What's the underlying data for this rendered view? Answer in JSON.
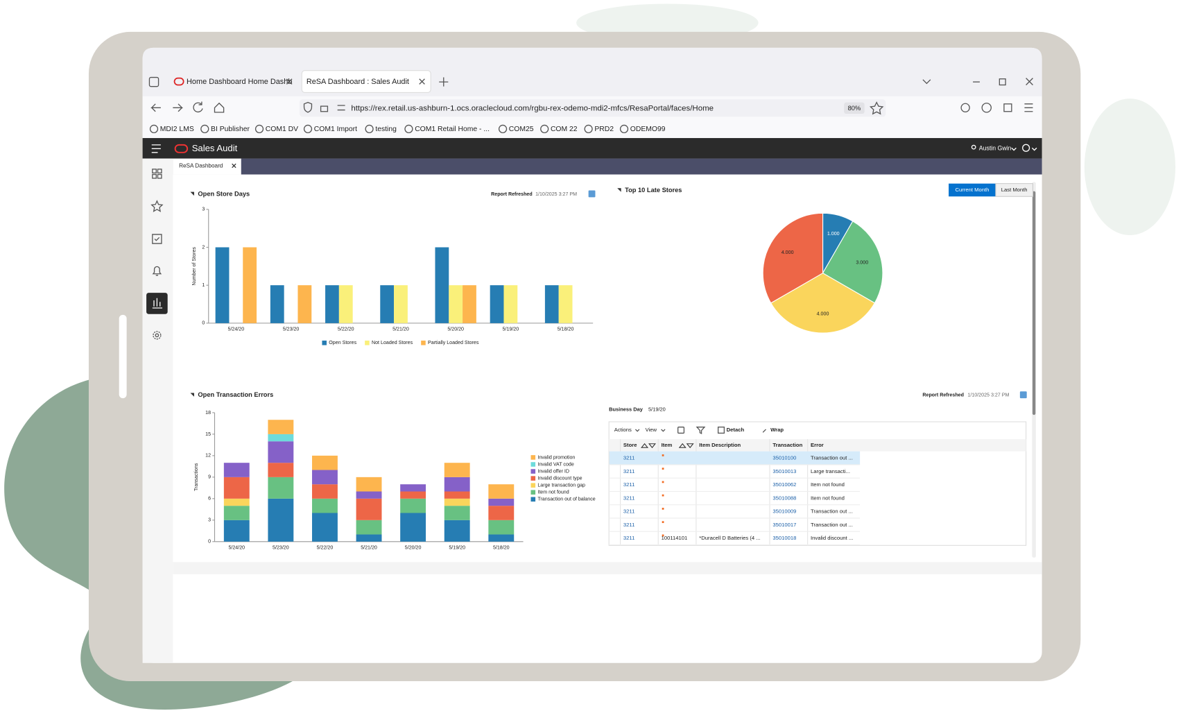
{
  "browser": {
    "tabs": [
      "Home Dashboard Home Dashb",
      "ReSA Dashboard : Sales Audit"
    ],
    "url": "https://rex.retail.us-ashburn-1.ocs.oraclecloud.com/rgbu-rex-odemo-mdi2-mfcs/ResaPortal/faces/Home",
    "zoom": "80%",
    "bookmarks": [
      "MDI2 LMS",
      "BI Publisher",
      "COM1 DV",
      "COM1 Import",
      "testing",
      "COM1 Retail Home - ...",
      "COM25",
      "COM 22",
      "PRD2",
      "ODEMO99"
    ]
  },
  "app": {
    "title": "Sales Audit",
    "user": "Austin Gwin",
    "tab": "ReSA Dashboard"
  },
  "open_store_days": {
    "type": "bar",
    "title": "Open Store Days",
    "report_refreshed": "Report Refreshed",
    "refreshed_at": "1/10/2025 3:27 PM",
    "y_label": "Number of Stores",
    "categories": [
      "5/24/20",
      "5/23/20",
      "5/22/20",
      "5/21/20",
      "5/20/20",
      "5/19/20",
      "5/18/20"
    ],
    "series": [
      {
        "name": "Open Stores",
        "color": "#267db3",
        "values": [
          2,
          1,
          1,
          1,
          2,
          1,
          1
        ]
      },
      {
        "name": "Not Loaded Stores",
        "color": "#faf07a",
        "values": [
          null,
          null,
          1,
          1,
          1,
          1,
          1
        ]
      },
      {
        "name": "Partially Loaded Stores",
        "color": "#fdb54e",
        "values": [
          2,
          1,
          null,
          null,
          1,
          null,
          null
        ]
      }
    ],
    "ylim": [
      0,
      3
    ],
    "yticks": [
      0,
      1,
      2,
      3
    ],
    "grid": false,
    "legend": "bottom"
  },
  "top_late_stores": {
    "type": "pie",
    "title": "Top 10 Late Stores",
    "buttons": [
      "Current Month",
      "Last Month"
    ],
    "values": [
      1,
      3,
      4,
      4
    ],
    "value_labels": [
      "1.000",
      "3.000",
      "4.000",
      "4.000"
    ],
    "colors": [
      "#267db3",
      "#68c182",
      "#fad55c",
      "#ed6647"
    ]
  },
  "open_transaction_errors": {
    "type": "bar",
    "stacked": true,
    "title": "Open Transaction Errors",
    "y_label": "Transactions",
    "categories": [
      "5/24/20",
      "5/23/20",
      "5/22/20",
      "5/21/20",
      "5/20/20",
      "5/19/20",
      "5/18/20"
    ],
    "series": [
      {
        "name": "Transaction out of balance",
        "color": "#267db3",
        "values": [
          3,
          6,
          4,
          1,
          4,
          3,
          1
        ]
      },
      {
        "name": "Item not found",
        "color": "#68c182",
        "values": [
          2,
          3,
          2,
          2,
          2,
          2,
          2
        ]
      },
      {
        "name": "Large transaction gap",
        "color": "#fad55c",
        "values": [
          1,
          null,
          null,
          null,
          null,
          1,
          null
        ]
      },
      {
        "name": "Invalid discount type",
        "color": "#ed6647",
        "values": [
          3,
          2,
          2,
          3,
          1,
          1,
          2
        ]
      },
      {
        "name": "Invalid offer ID",
        "color": "#8561c8",
        "values": [
          2,
          3,
          2,
          1,
          1,
          2,
          1
        ]
      },
      {
        "name": "Invalid VAT code",
        "color": "#6ddbdb",
        "values": [
          null,
          1,
          null,
          null,
          null,
          null,
          null
        ]
      },
      {
        "name": "Invalid promotion",
        "color": "#fdb54e",
        "values": [
          null,
          2,
          2,
          2,
          null,
          2,
          2
        ]
      }
    ],
    "ylim": [
      0,
      18
    ],
    "yticks": [
      0,
      3,
      6,
      9,
      12,
      15,
      18
    ],
    "grid": false,
    "legend": "right"
  },
  "transactions_table": {
    "report_refreshed": "Report Refreshed",
    "refreshed_at": "1/10/2025 3:27 PM",
    "business_day_label": "Business Day",
    "business_day": "5/19/20",
    "toolbar": [
      "Actions",
      "View",
      "Detach",
      "Wrap"
    ],
    "columns": [
      "Store",
      "Item",
      "Item Description",
      "Transaction",
      "Error"
    ],
    "rows": [
      [
        3211,
        null,
        null,
        35010100,
        "Transaction out ..."
      ],
      [
        3211,
        null,
        null,
        35010013,
        "Large transacti..."
      ],
      [
        3211,
        null,
        null,
        35010062,
        "Item not found"
      ],
      [
        3211,
        null,
        null,
        35010088,
        "Item not found"
      ],
      [
        3211,
        null,
        null,
        35010009,
        "Transaction out ..."
      ],
      [
        3211,
        null,
        null,
        35010017,
        "Transaction out ..."
      ],
      [
        3211,
        100114101,
        "*Duracell D Batteries (4 ...",
        35010018,
        "Invalid discount ..."
      ]
    ]
  }
}
